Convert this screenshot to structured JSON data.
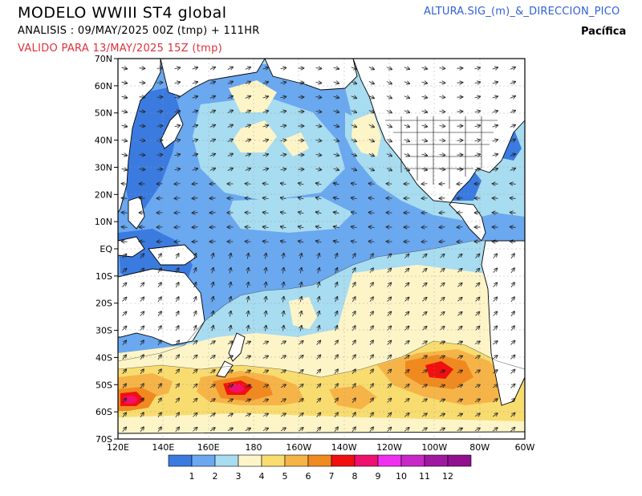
{
  "header": {
    "title": "MODELO WWIII ST4 global",
    "analysis": "ANALISIS : 09/MAY/2025 00Z  (tmp) + 111HR",
    "valid": "VALIDO PARA  13/MAY/2025 15Z  (tmp)",
    "variable": "ALTURA.SIG_(m)_&_DIRECCION_PICO",
    "region": "Pacífica"
  },
  "map": {
    "lat_labels": [
      "70N",
      "60N",
      "50N",
      "40N",
      "30N",
      "20N",
      "10N",
      "EQ",
      "10S",
      "20S",
      "30S",
      "40S",
      "50S",
      "60S",
      "70S"
    ],
    "lon_labels": [
      "120E",
      "140E",
      "160E",
      "180",
      "160W",
      "140W",
      "120W",
      "100W",
      "80W",
      "60W"
    ]
  },
  "legend": {
    "labels": [
      "1",
      "2",
      "3",
      "4",
      "5",
      "6",
      "7",
      "8",
      "9",
      "10",
      "11",
      "12"
    ],
    "colors": [
      "#3b7be0",
      "#6aa8f0",
      "#a8dcf0",
      "#fdf5c8",
      "#f8dc70",
      "#f6b448",
      "#f08a20",
      "#f01010",
      "#f01070",
      "#f030f0",
      "#c828c8",
      "#a018a0",
      "#901090"
    ]
  },
  "colors": {
    "land": "#ffffff",
    "ocean_base": "#a8dcf0",
    "title_red": "#e0303a",
    "title_blue": "#3060d8"
  }
}
